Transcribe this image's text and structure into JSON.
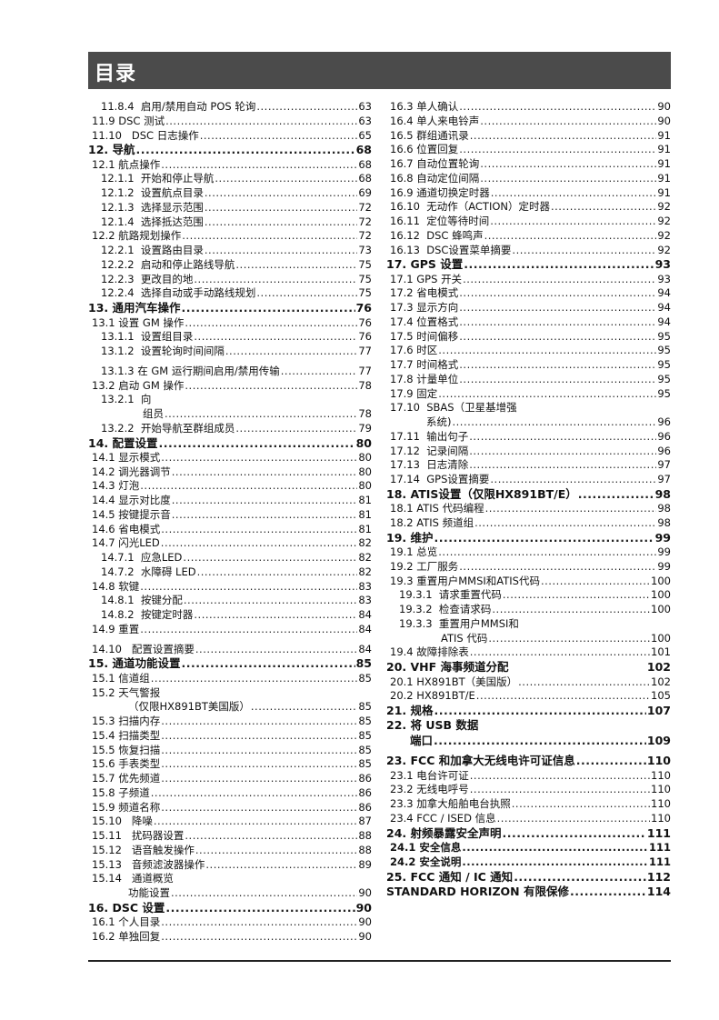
{
  "header": {
    "title": "目录"
  },
  "left": [
    {
      "level": 2,
      "text": "11.8.4  启用/禁用自动 POS 轮询",
      "page": "63"
    },
    {
      "level": 1,
      "text": "11.9 DSC 测试",
      "page": "63"
    },
    {
      "level": 1,
      "text": "11.10   DSC 日志操作",
      "page": "65"
    },
    {
      "level": 0,
      "text": "12. 导航",
      "page": "68"
    },
    {
      "level": 1,
      "text": "12.1 航点操作",
      "page": "68"
    },
    {
      "level": 2,
      "text": "12.1.1  开始和停止导航",
      "page": "68"
    },
    {
      "level": 2,
      "text": "12.1.2  设置航点目录",
      "page": "69"
    },
    {
      "level": 2,
      "text": "12.1.3  选择显示范围",
      "page": "72"
    },
    {
      "level": 2,
      "text": "12.1.4  选择抵达范围",
      "page": "72"
    },
    {
      "level": 1,
      "text": "12.2 航路规划操作",
      "page": "72"
    },
    {
      "level": 2,
      "text": "12.2.1  设置路由目录",
      "page": "73"
    },
    {
      "level": 2,
      "text": "12.2.2  启动和停止路线导航",
      "page": "75"
    },
    {
      "level": 2,
      "text": "12.2.3  更改目的地",
      "page": "75"
    },
    {
      "level": 2,
      "text": "12.2.4  选择自动或手动路线规划",
      "page": "75"
    },
    {
      "level": 0,
      "text": "13. 通用汽车操作",
      "page": "76"
    },
    {
      "level": 1,
      "text": "13.1 设置 GM 操作",
      "page": "76"
    },
    {
      "level": 2,
      "text": "13.1.1  设置组目录",
      "page": "76"
    },
    {
      "level": 2,
      "text": "13.1.2  设置轮询时间间隔",
      "page": "77"
    },
    {
      "level": 2,
      "text": "13.1.3 在 GM 运行期间启用/禁用传输",
      "page": "77"
    },
    {
      "level": 1,
      "text": "13.2 启动 GM 操作",
      "page": "78"
    },
    {
      "level": 2,
      "text": "13.2.1  向",
      "cont": "组员",
      "page": "78"
    },
    {
      "level": 2,
      "text": "13.2.2  开始导航至群组成员",
      "page": "79"
    },
    {
      "level": 0,
      "text": "14. 配置设置",
      "page": "80"
    },
    {
      "level": 1,
      "text": "14.1 显示模式",
      "page": "80"
    },
    {
      "level": 1,
      "text": "14.2 调光器调节",
      "page": "80"
    },
    {
      "level": 1,
      "text": "14.3 灯泡",
      "page": "80"
    },
    {
      "level": 1,
      "text": "14.4 显示对比度",
      "page": "81"
    },
    {
      "level": 1,
      "text": "14.5 按键提示音",
      "page": "81"
    },
    {
      "level": 1,
      "text": "14.6 省电模式",
      "page": "81"
    },
    {
      "level": 1,
      "text": "14.7 闪光LED",
      "page": "82"
    },
    {
      "level": 2,
      "text": "14.7.1  应急LED",
      "page": "82"
    },
    {
      "level": 2,
      "text": "14.7.2  水障碍 LED",
      "page": "82"
    },
    {
      "level": 1,
      "text": "14.8 软键",
      "page": "83"
    },
    {
      "level": 2,
      "text": "14.8.1  按键分配",
      "page": "83"
    },
    {
      "level": 2,
      "text": "14.8.2  按键定时器",
      "page": "84"
    },
    {
      "level": 1,
      "text": "14.9 重置",
      "page": "84"
    },
    {
      "level": 1,
      "text": "14.10   配置设置摘要",
      "page": "84"
    },
    {
      "level": 0,
      "text": "15. 通道功能设置",
      "page": "85"
    },
    {
      "level": 1,
      "text": "15.1 信道组",
      "page": "85"
    },
    {
      "level": 1,
      "text": "15.2 天气警报",
      "cont": "（仅限HX891BT美国版）",
      "page": "85"
    },
    {
      "level": 1,
      "text": "15.3 扫描内存",
      "page": "85"
    },
    {
      "level": 1,
      "text": "15.4 扫描类型",
      "page": "85"
    },
    {
      "level": 1,
      "text": "15.5 恢复扫描",
      "page": "85"
    },
    {
      "level": 1,
      "text": "15.6 手表类型",
      "page": "85"
    },
    {
      "level": 1,
      "text": "15.7 优先频道",
      "page": "86"
    },
    {
      "level": 1,
      "text": "15.8 子频道",
      "page": "86"
    },
    {
      "level": 1,
      "text": "15.9 频道名称",
      "page": "86"
    },
    {
      "level": 1,
      "text": "15.10   降噪",
      "page": "87"
    },
    {
      "level": 1,
      "text": "15.11   扰码器设置",
      "page": "88"
    },
    {
      "level": 1,
      "text": "15.12   语音触发操作",
      "page": "88"
    },
    {
      "level": 1,
      "text": "15.13   音频滤波器操作",
      "page": "89"
    },
    {
      "level": 1,
      "text": "15.14   通道概览",
      "cont": "功能设置",
      "page": "90"
    },
    {
      "level": 0,
      "text": "16. DSC 设置",
      "page": "90"
    },
    {
      "level": 1,
      "text": "16.1 个人目录",
      "page": "90"
    },
    {
      "level": 1,
      "text": "16.2 单独回复",
      "page": "90"
    }
  ],
  "right": [
    {
      "level": 1,
      "text": "16.3 单人确认",
      "page": "90"
    },
    {
      "level": 1,
      "text": "16.4 单人来电铃声",
      "page": "90"
    },
    {
      "level": 1,
      "text": "16.5 群组通讯录",
      "page": "91"
    },
    {
      "level": 1,
      "text": "16.6 位置回复",
      "page": "91"
    },
    {
      "level": 1,
      "text": "16.7 自动位置轮询",
      "page": "91"
    },
    {
      "level": 1,
      "text": "16.8 自动定位间隔",
      "page": "91"
    },
    {
      "level": 1,
      "text": "16.9 通道切换定时器",
      "page": "91"
    },
    {
      "level": 1,
      "text": "16.10  无动作（ACTION）定时器",
      "page": "92"
    },
    {
      "level": 1,
      "text": "16.11  定位等待时间",
      "page": "92"
    },
    {
      "level": 1,
      "text": "16.12  DSC 蜂鸣声",
      "page": "92"
    },
    {
      "level": 1,
      "text": "16.13  DSC设置菜单摘要",
      "page": "92"
    },
    {
      "level": 0,
      "text": "17. GPS 设置",
      "page": "93"
    },
    {
      "level": 1,
      "text": "17.1 GPS 开关",
      "page": "93"
    },
    {
      "level": 1,
      "text": "17.2 省电模式",
      "page": "94"
    },
    {
      "level": 1,
      "text": "17.3 显示方向",
      "page": "94"
    },
    {
      "level": 1,
      "text": "17.4 位置格式",
      "page": "94"
    },
    {
      "level": 1,
      "text": "17.5 时间偏移",
      "page": "95"
    },
    {
      "level": 1,
      "text": "17.6 时区",
      "page": "95"
    },
    {
      "level": 1,
      "text": "17.7 时间格式",
      "page": "95"
    },
    {
      "level": 1,
      "text": "17.8 计量单位",
      "page": "95"
    },
    {
      "level": 1,
      "text": "17.9 固定",
      "page": "95"
    },
    {
      "level": 1,
      "text": "17.10  SBAS（卫星基增强",
      "cont": "系统)",
      "page": "96"
    },
    {
      "level": 1,
      "text": "17.11  输出句子",
      "page": "96"
    },
    {
      "level": 1,
      "text": "17.12  记录间隔",
      "page": "96"
    },
    {
      "level": 1,
      "text": "17.13  日志清除",
      "page": "97"
    },
    {
      "level": 1,
      "text": "17.14  GPS设置摘要",
      "page": "97"
    },
    {
      "level": 0,
      "text": "18. ATIS设置（仅限HX891BT/E）",
      "page": "98"
    },
    {
      "level": 1,
      "text": "18.1 ATIS 代码编程",
      "page": "98"
    },
    {
      "level": 1,
      "text": "18.2 ATIS 频道组",
      "page": "98"
    },
    {
      "level": 0,
      "text": "19. 维护",
      "page": "99"
    },
    {
      "level": 1,
      "text": "19.1 总览",
      "page": "99"
    },
    {
      "level": 1,
      "text": "19.2 工厂服务",
      "page": "99"
    },
    {
      "level": 1,
      "text": "19.3 重置用户MMSI和ATIS代码",
      "page": "100"
    },
    {
      "level": 2,
      "text": "19.3.1  请求重置代码",
      "page": "100"
    },
    {
      "level": 2,
      "text": "19.3.2  检查请求码",
      "page": "100"
    },
    {
      "level": 2,
      "text": "19.3.3  重置用户MMSI和",
      "cont": "ATIS 代码",
      "page": "100"
    },
    {
      "level": 1,
      "text": "19.4 故障排除表",
      "page": "101"
    },
    {
      "level": 0,
      "text": "20. VHF 海事频道分配",
      "page": "102",
      "noleader": true
    },
    {
      "level": 1,
      "text": "20.1 HX891BT（美国版）",
      "page": "102"
    },
    {
      "level": 1,
      "text": "20.2 HX891BT/E",
      "page": "105"
    },
    {
      "level": 0,
      "text": "21. 规格",
      "page": "107"
    },
    {
      "level": 0,
      "text": "22. 将 USB 数据",
      "cont": "端口",
      "page": "109"
    },
    {
      "level": 0,
      "text": "23. FCC 和加拿大无线电许可证信息",
      "page": "110"
    },
    {
      "level": 1,
      "text": "23.1 电台许可证",
      "page": "110"
    },
    {
      "level": 1,
      "text": "23.2 无线电呼号",
      "page": "110"
    },
    {
      "level": 1,
      "text": "23.3 加拿大船舶电台执照",
      "page": "110"
    },
    {
      "level": 1,
      "text": "23.4 FCC / ISED 信息",
      "page": "110"
    },
    {
      "level": 0,
      "text": "24. 射频暴露安全声明",
      "page": "111"
    },
    {
      "level": 1,
      "text": "24.1 安全信息",
      "page": "111",
      "bold": true
    },
    {
      "level": 1,
      "text": "24.2 安全说明",
      "page": "111",
      "bold": true
    },
    {
      "level": 0,
      "text": "25. FCC 通知 / IC 通知",
      "page": "112"
    },
    {
      "level": 0,
      "text": "STANDARD HORIZON 有限保修",
      "page": "114"
    }
  ]
}
